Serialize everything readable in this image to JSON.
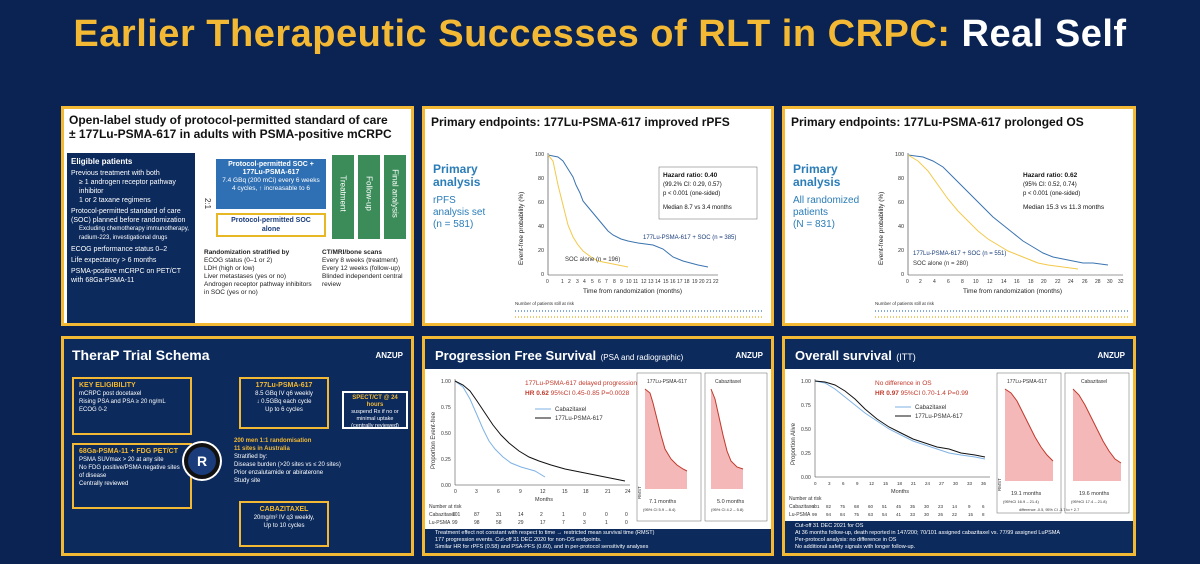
{
  "slide": {
    "title_part1": "Earlier Therapeutic Successes of RLT in CRPC:",
    "title_part2": "Real Self"
  },
  "colors": {
    "navy": "#0a2352",
    "gold": "#f3b934",
    "blue_curve": "#3a73b0",
    "yellow_curve": "#f2c94c",
    "red": "#c0392b"
  },
  "vision": {
    "title_line1": "Open-label study of protocol-permitted standard of care",
    "title_line2": "± 177Lu-PSMA-617 in adults with PSMA-positive mCRPC",
    "eligible_header": "Eligible patients",
    "eligible_items": [
      "Previous treatment with both",
      "≥ 1 androgen receptor pathway inhibitor",
      "1 or 2 taxane regimens",
      "Protocol-permitted standard of care (SOC) planned before randomization",
      "Excluding chemotherapy immunotherapy, radium-223, investigational drugs",
      "ECOG performance status 0–2",
      "Life expectancy > 6 months",
      "PSMA-positive mCRPC on PET/CT with 68Ga-PSMA-11"
    ],
    "ratio": "2:1",
    "arm1_line1": "Protocol-permitted SOC +",
    "arm1_line2": "177Lu-PSMA-617",
    "arm1_detail1": "7.4 GBq (200 mCi) every 6 weeks",
    "arm1_detail2": "4 cycles, ↑ increasable to 6",
    "arm2_line1": "Protocol-permitted SOC",
    "arm2_line2": "alone",
    "phase1": "Treatment",
    "phase2": "Follow-up",
    "phase3": "Final analysis",
    "rand_header": "Randomization stratified by",
    "rand_items": [
      "ECOG status (0–1 or 2)",
      "LDH (high or low)",
      "Liver metastases (yes or no)",
      "Androgen receptor pathway inhibitors in SOC (yes or no)"
    ],
    "scan_header": "CT/MRI/bone scans",
    "scan_items": [
      "Every 8 weeks (treatment)",
      "Every 12 weeks (follow-up)",
      "Blinded independent central review"
    ]
  },
  "rpfs": {
    "title": "Primary endpoints: 177Lu-PSMA-617 improved rPFS",
    "analysis_l1": "Primary",
    "analysis_l2": "analysis",
    "set_l1": "rPFS",
    "set_l2": "analysis set",
    "set_l3": "(n = 581)",
    "hr_l1": "Hazard ratio: 0.40",
    "hr_l2": "(99.2% CI: 0.29, 0.57)",
    "hr_l3": "p < 0.001 (one-sided)",
    "hr_l4": "Median 8.7 vs 3.4 months",
    "series_lu": "177Lu-PSMA-617 + SOC (n = 385)",
    "series_soc": "SOC alone (n = 196)",
    "ylabel": "Event-free probability (%)",
    "xlabel": "Time from randomization (months)",
    "risk_label": "Number of patients still at risk"
  },
  "os": {
    "title": "Primary endpoints: 177Lu-PSMA-617 prolonged OS",
    "analysis_l1": "Primary",
    "analysis_l2": "analysis",
    "set_l1": "All randomized",
    "set_l2": "patients",
    "set_l3": "(N = 831)",
    "hr_l1": "Hazard ratio: 0.62",
    "hr_l2": "(95% CI: 0.52, 0.74)",
    "hr_l3": "p < 0.001 (one-sided)",
    "hr_l4": "Median 15.3 vs 11.3 months",
    "series_lu": "177Lu-PSMA-617 + SOC (n = 551)",
    "series_soc": "SOC alone (n = 280)",
    "ylabel": "Event-free probability (%)",
    "xlabel": "Time from randomization (months)",
    "risk_label": "Number of patients still at risk"
  },
  "therap": {
    "title": "TheraP Trial Schema",
    "logo": "ANZUP",
    "key_header": "KEY ELIGIBILITY",
    "key_items": [
      "mCRPC post docetaxel",
      "Rising PSA and PSA ≥ 20 ng/mL",
      "ECOG 0-2"
    ],
    "pet_header": "68Ga-PSMA-11 + FDG PET/CT",
    "pet_items": [
      "PSMA SUVmax > 20 at any site",
      "No FDG positive/PSMA negative sites of disease",
      "Centrally reviewed"
    ],
    "r_label": "R",
    "lu_header": "177Lu-PSMA-617",
    "lu_l1": "8.5 GBq IV q6 weekly",
    "lu_l2": "↓ 0.5GBq each cycle",
    "lu_l3": "Up to 6 cycles",
    "spect_l1": "SPECT/CT @ 24 hours",
    "spect_l2": "suspend Rx if no or minimal uptake (centrally reviewed)",
    "strat_l1": "200 men 1:1 randomisation",
    "strat_l2": "11 sites in Australia",
    "strat_l3": "Stratified by:",
    "strat_items": [
      "Disease burden (>20 sites vs ≤ 20 sites)",
      "Prior enzalutamide or abiraterone",
      "Study site"
    ],
    "cab_header": "CABAZITAXEL",
    "cab_l1": "20mg/m² IV q3 weekly,",
    "cab_l2": "Up to 10 cycles"
  },
  "pfs": {
    "title_main": "Progression Free Survival",
    "title_sub": "(PSA and radiographic)",
    "logo": "ANZUP",
    "ylabel": "Proportion Event-free",
    "note_l1": "177Lu-PSMA-617 delayed progression",
    "note_l2_bold": "HR 0.62",
    "note_l2": "95%CI 0.45-0.85   P=0.0028",
    "legend_cab": "Cabazitaxel",
    "legend_lu": "177Lu-PSMA-617",
    "xlabel": "Months",
    "xticks": [
      "0",
      "3",
      "6",
      "9",
      "12",
      "15",
      "18",
      "21",
      "24"
    ],
    "risk_header": "Number at risk",
    "risk_rows": [
      {
        "label": "Cabazitaxel",
        "values": [
          "101",
          "87",
          "31",
          "14",
          "2",
          "1",
          "0",
          "0",
          "0"
        ]
      },
      {
        "label": "Lu-PSMA",
        "values": [
          "99",
          "98",
          "58",
          "29",
          "17",
          "7",
          "3",
          "1",
          "0"
        ]
      }
    ],
    "inset1_label": "177Lu-PSMA-617",
    "inset1_value": "7.1 months",
    "inset1_ci": "(95% CI 5.9 – 8.4)",
    "inset2_label": "Cabazitaxel",
    "inset2_value": "5.0 months",
    "inset2_ci": "(95% CI 4.2 – 5.8)",
    "inset_ylabel": "RMST",
    "bullets": [
      "Treatment effect not constant with respect to time → restricted mean survival time (RMST)",
      "177 progression events. Cut-off 31 DEC 2020 for non-OS endpoints.",
      "Similar HR for rPFS (0.58) and PSA-PFS (0.60), and in per-protocol sensitivity analyses"
    ]
  },
  "ovs": {
    "title_main": "Overall survival",
    "title_sub": "(ITT)",
    "logo": "ANZUP",
    "ylabel": "Proportion Alive",
    "note_l1": "No difference in OS",
    "note_l2_bold": "HR 0.97",
    "note_l2": "95%CI 0.70-1.4   P=0.99",
    "legend_cab": "Cabazitaxel",
    "legend_lu": "177Lu-PSMA-617",
    "xlabel": "Months",
    "xticks": [
      "0",
      "3",
      "6",
      "9",
      "12",
      "15",
      "18",
      "21",
      "24",
      "27",
      "30",
      "33",
      "36"
    ],
    "risk_header": "Number at risk",
    "risk_rows": [
      {
        "label": "Cabazitaxel",
        "values": [
          "101",
          "82",
          "75",
          "68",
          "60",
          "51",
          "45",
          "35",
          "30",
          "23",
          "14",
          "9",
          "6"
        ]
      },
      {
        "label": "Lu-PSMA",
        "values": [
          "99",
          "94",
          "84",
          "75",
          "63",
          "54",
          "41",
          "33",
          "30",
          "26",
          "22",
          "15",
          "8"
        ]
      }
    ],
    "inset1_label": "177Lu-PSMA-617",
    "inset1_value": "19.1 months",
    "inset1_ci": "(95%CI 16.9 – 21.4)",
    "inset2_label": "Cabazitaxel",
    "inset2_value": "19.6 months",
    "inset2_ci": "(95%CI 17.4 – 21.8)",
    "inset_ylabel": "RMST",
    "inset_diff": "difference -0.5, 95% CI -3.7 to + 2.7",
    "bullets": [
      "Cut-off 31 DEC 2021 for OS",
      "At 36 months follow-up, death reported in 147/200; 70/101 assigned cabazitaxel vs. 77/99 assigned LuPSMA",
      "Per-protocol analysis: no difference in OS",
      "No additional safety signals with longer follow-up."
    ]
  }
}
